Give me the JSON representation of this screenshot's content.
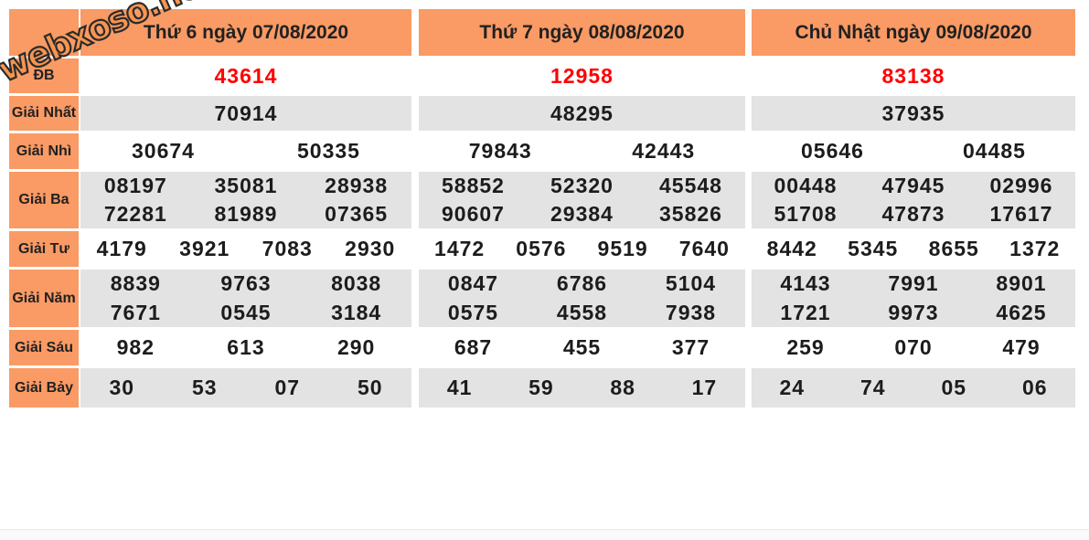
{
  "watermark": {
    "text": "webxoso.net"
  },
  "colors": {
    "accent_orange": "#fa9a64",
    "row_gray": "#e3e3e3",
    "special_red": "#ff0000",
    "text_dark": "#212121"
  },
  "row_labels": {
    "db": "ĐB",
    "nhat": "Giải Nhất",
    "nhi": "Giải Nhì",
    "ba": "Giải Ba",
    "tu": "Giải Tư",
    "nam": "Giải Năm",
    "sau": "Giải Sáu",
    "bay": "Giải Bảy"
  },
  "days": [
    {
      "title": "Thứ 6 ngày 07/08/2020",
      "db": "43614",
      "nhat": "70914",
      "nhi": [
        "30674",
        "50335"
      ],
      "ba": [
        "08197",
        "35081",
        "28938",
        "72281",
        "81989",
        "07365"
      ],
      "tu": [
        "4179",
        "3921",
        "7083",
        "2930"
      ],
      "nam": [
        "8839",
        "9763",
        "8038",
        "7671",
        "0545",
        "3184"
      ],
      "sau": [
        "982",
        "613",
        "290"
      ],
      "bay": [
        "30",
        "53",
        "07",
        "50"
      ]
    },
    {
      "title": "Thứ 7 ngày 08/08/2020",
      "db": "12958",
      "nhat": "48295",
      "nhi": [
        "79843",
        "42443"
      ],
      "ba": [
        "58852",
        "52320",
        "45548",
        "90607",
        "29384",
        "35826"
      ],
      "tu": [
        "1472",
        "0576",
        "9519",
        "7640"
      ],
      "nam": [
        "0847",
        "6786",
        "5104",
        "0575",
        "4558",
        "7938"
      ],
      "sau": [
        "687",
        "455",
        "377"
      ],
      "bay": [
        "41",
        "59",
        "88",
        "17"
      ]
    },
    {
      "title": "Chủ Nhật ngày 09/08/2020",
      "db": "83138",
      "nhat": "37935",
      "nhi": [
        "05646",
        "04485"
      ],
      "ba": [
        "00448",
        "47945",
        "02996",
        "51708",
        "47873",
        "17617"
      ],
      "tu": [
        "8442",
        "5345",
        "8655",
        "1372"
      ],
      "nam": [
        "4143",
        "7991",
        "8901",
        "1721",
        "9973",
        "4625"
      ],
      "sau": [
        "259",
        "070",
        "479"
      ],
      "bay": [
        "24",
        "74",
        "05",
        "06"
      ]
    }
  ]
}
